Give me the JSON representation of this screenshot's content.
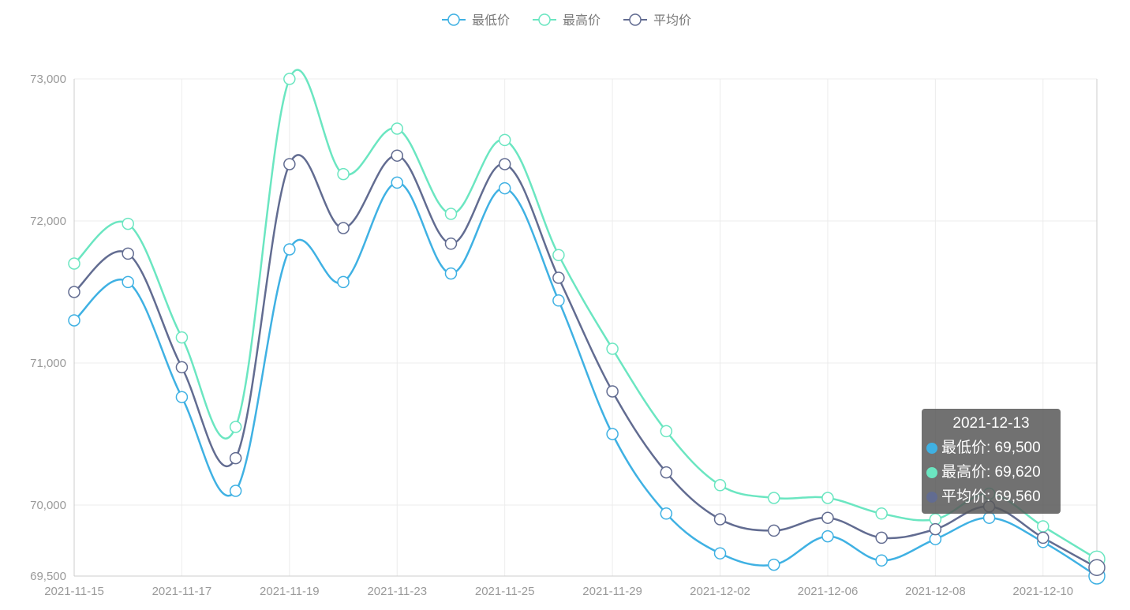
{
  "chart_data": {
    "type": "line",
    "smooth": true,
    "x": [
      "2021-11-15",
      "2021-11-16",
      "2021-11-17",
      "2021-11-18",
      "2021-11-19",
      "2021-11-22",
      "2021-11-23",
      "2021-11-24",
      "2021-11-25",
      "2021-11-26",
      "2021-11-29",
      "2021-11-30",
      "2021-12-02",
      "2021-12-03",
      "2021-12-06",
      "2021-12-07",
      "2021-12-08",
      "2021-12-09",
      "2021-12-10",
      "2021-12-13"
    ],
    "x_tick_labels": [
      "2021-11-15",
      "2021-11-17",
      "2021-11-19",
      "2021-11-23",
      "2021-11-25",
      "2021-11-29",
      "2021-12-02",
      "2021-12-06",
      "2021-12-08",
      "2021-12-10"
    ],
    "y_tick_labels": [
      "73,000",
      "72,000",
      "71,000",
      "70,000",
      "69,500"
    ],
    "y_ticks": [
      73000,
      72000,
      71000,
      70000,
      69500
    ],
    "ylim": [
      69500,
      73000
    ],
    "legend_position": "top-center",
    "series": [
      {
        "name": "最低价",
        "color": "#3fb1e3",
        "values": [
          71300,
          71570,
          70760,
          70100,
          71800,
          71570,
          72270,
          71630,
          72230,
          71440,
          70500,
          69940,
          69660,
          69580,
          69780,
          69610,
          69760,
          69910,
          69740,
          69500
        ]
      },
      {
        "name": "最高价",
        "color": "#6be6c1",
        "values": [
          71700,
          71980,
          71180,
          70550,
          73000,
          72330,
          72650,
          72050,
          72570,
          71760,
          71100,
          70520,
          70140,
          70050,
          70050,
          69940,
          69900,
          70080,
          69850,
          69620
        ]
      },
      {
        "name": "平均价",
        "color": "#626c91",
        "values": [
          71500,
          71770,
          70970,
          70330,
          72400,
          71950,
          72460,
          71840,
          72400,
          71600,
          70800,
          70230,
          69900,
          69820,
          69910,
          69770,
          69830,
          69990,
          69770,
          69560
        ]
      }
    ],
    "tooltip": {
      "title": "2021-12-13",
      "rows": [
        {
          "label": "最低价: 69,500",
          "color": "#3fb1e3"
        },
        {
          "label": "最高价: 69,620",
          "color": "#6be6c1"
        },
        {
          "label": "平均价: 69,560",
          "color": "#626c91"
        }
      ]
    }
  }
}
